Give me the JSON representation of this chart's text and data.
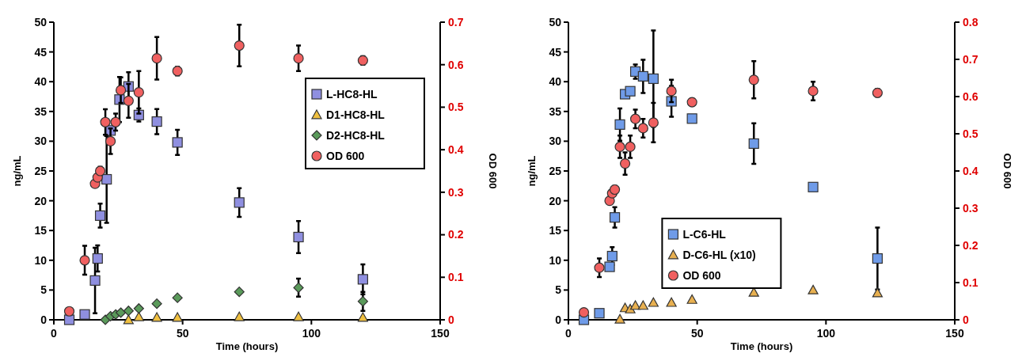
{
  "chart_data": [
    {
      "type": "scatter",
      "xlabel": "Time (hours)",
      "ylabel": "ng/mL",
      "y2label": "OD 600",
      "xlim": [
        0,
        150
      ],
      "xticks": [
        0,
        50,
        100,
        150
      ],
      "ylim": [
        0,
        50
      ],
      "yticks": [
        0,
        5,
        10,
        15,
        20,
        25,
        30,
        35,
        40,
        45,
        50
      ],
      "y2lim": [
        0,
        0.7
      ],
      "y2ticks": [
        0,
        0.1,
        0.2,
        0.3,
        0.4,
        0.5,
        0.6,
        0.7
      ],
      "legend": "right",
      "grid": false,
      "series": [
        {
          "name": "L-HC8-HL",
          "color": "#8f8fe0",
          "marker": "square",
          "x": [
            6,
            12,
            16,
            17,
            18,
            20.5,
            22,
            25.5,
            29,
            33,
            40,
            48,
            72,
            95,
            120
          ],
          "values": [
            0,
            0.9,
            6.6,
            10.3,
            17.5,
            23.6,
            31.8,
            37,
            39.2,
            34.4,
            33.3,
            29.8,
            19.7,
            13.9,
            6.8
          ],
          "errors": [
            null,
            null,
            5.5,
            2.2,
            2,
            7.3,
            null,
            3.8,
            2.4,
            1.1,
            2.1,
            2.1,
            2.4,
            2.7,
            2.5
          ]
        },
        {
          "name": "D1-HC8-HL",
          "color": "#f0c040",
          "marker": "triangle",
          "x": [
            29,
            33,
            40,
            48,
            72,
            95,
            120
          ],
          "values": [
            0,
            0.5,
            0.4,
            0.4,
            0.5,
            0.5,
            0.4
          ]
        },
        {
          "name": "D2-HC8-HL",
          "color": "#5a9a5a",
          "marker": "diamond",
          "x": [
            20,
            22,
            24,
            26,
            29,
            33,
            40,
            48,
            72,
            95,
            120
          ],
          "values": [
            0,
            0.6,
            0.9,
            1.2,
            1.5,
            1.9,
            2.7,
            3.7,
            4.7,
            5.4,
            3.1
          ],
          "errors": [
            null,
            null,
            null,
            null,
            null,
            null,
            null,
            null,
            null,
            1.5,
            1.6
          ]
        },
        {
          "name": "OD 600",
          "color": "#f06060",
          "marker": "circle",
          "axis": "y2",
          "x": [
            6,
            12,
            16,
            17,
            18,
            20,
            22,
            24,
            26,
            29,
            33,
            40,
            48,
            72,
            95,
            120
          ],
          "values": [
            0.02,
            0.14,
            0.32,
            0.335,
            0.35,
            0.465,
            0.42,
            0.465,
            0.54,
            0.515,
            0.535,
            0.615,
            0.585,
            0.645,
            0.615,
            0.61
          ],
          "errors": [
            null,
            0.034,
            null,
            null,
            0.01,
            0.03,
            0.03,
            0.02,
            0.03,
            0.04,
            0.05,
            0.05,
            0.01,
            0.049,
            0.03,
            0.01
          ]
        }
      ]
    },
    {
      "type": "scatter",
      "xlabel": "Time (hours)",
      "ylabel": "ng/mL",
      "y2label": "OD 600",
      "xlim": [
        0,
        150
      ],
      "xticks": [
        0,
        50,
        100,
        150
      ],
      "ylim": [
        0,
        50
      ],
      "yticks": [
        0,
        5,
        10,
        15,
        20,
        25,
        30,
        35,
        40,
        45,
        50
      ],
      "y2lim": [
        0,
        0.8
      ],
      "y2ticks": [
        0,
        0.1,
        0.2,
        0.3,
        0.4,
        0.5,
        0.6,
        0.7,
        0.8
      ],
      "legend": "bottom",
      "grid": false,
      "series": [
        {
          "name": "L-C6-HL",
          "color": "#6f9be8",
          "marker": "square",
          "x": [
            6,
            12,
            16,
            17,
            18,
            20,
            22,
            24,
            26,
            29,
            33,
            40,
            48,
            72,
            95,
            120
          ],
          "values": [
            0,
            1.1,
            8.9,
            10.7,
            17.2,
            32.8,
            37.9,
            38.4,
            41.7,
            40.9,
            40.5,
            36.7,
            33.8,
            29.6,
            22.3,
            10.3
          ],
          "errors": [
            null,
            null,
            null,
            1.5,
            1.7,
            2.7,
            null,
            null,
            1.2,
            2.8,
            8.1,
            2.6,
            null,
            3.4,
            null,
            5.2
          ]
        },
        {
          "name": "D-C6-HL (x10)",
          "color": "#e8b050",
          "marker": "triangle",
          "x": [
            20,
            22,
            24,
            26,
            29,
            33,
            40,
            48,
            72,
            95,
            120
          ],
          "values": [
            0.1,
            2,
            1.8,
            2.4,
            2.4,
            2.9,
            2.9,
            3.4,
            4.6,
            5,
            4.5
          ]
        },
        {
          "name": "OD 600",
          "color": "#f06060",
          "marker": "circle",
          "axis": "y2",
          "x": [
            6,
            12,
            16,
            17,
            18,
            20,
            22,
            24,
            26,
            29,
            33,
            40,
            48,
            72,
            95,
            120
          ],
          "values": [
            0.02,
            0.14,
            0.32,
            0.34,
            0.35,
            0.465,
            0.42,
            0.465,
            0.54,
            0.515,
            0.53,
            0.615,
            0.585,
            0.645,
            0.615,
            0.61
          ],
          "errors": [
            null,
            0.025,
            null,
            null,
            0.01,
            0.03,
            0.03,
            0.03,
            0.025,
            0.025,
            0.053,
            0.03,
            0.01,
            0.05,
            0.025,
            0.01
          ]
        }
      ]
    }
  ]
}
